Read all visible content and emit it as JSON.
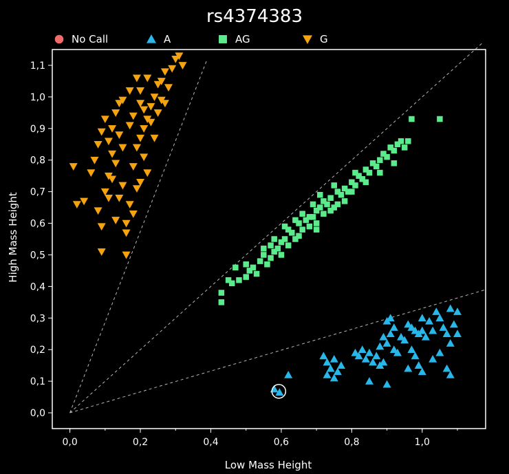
{
  "chart_data": {
    "type": "scatter",
    "title": "rs4374383",
    "xlabel": "Low Mass Height",
    "ylabel": "High Mass Height",
    "xlim": [
      -0.05,
      1.18
    ],
    "ylim": [
      -0.05,
      1.15
    ],
    "xticks": [
      "0,0",
      "0,2",
      "0,4",
      "0,6",
      "0,8",
      "1,0"
    ],
    "xtick_values": [
      0.0,
      0.2,
      0.4,
      0.6,
      0.8,
      1.0
    ],
    "yticks": [
      "0,0",
      "0,1",
      "0,2",
      "0,3",
      "0,4",
      "0,5",
      "0,6",
      "0,7",
      "0,8",
      "0,9",
      "1,0",
      "1,1"
    ],
    "ytick_values": [
      0.0,
      0.1,
      0.2,
      0.3,
      0.4,
      0.5,
      0.6,
      0.7,
      0.8,
      0.9,
      1.0,
      1.1
    ],
    "grid": false,
    "legend_position": "top",
    "boundary_lines": [
      {
        "from": [
          0.0,
          0.0
        ],
        "to": [
          0.39,
          1.12
        ]
      },
      {
        "from": [
          0.0,
          0.0
        ],
        "to": [
          1.17,
          1.17
        ]
      },
      {
        "from": [
          0.0,
          0.0
        ],
        "to": [
          1.18,
          0.39
        ]
      }
    ],
    "highlighted_point": [
      0.593,
      0.068
    ],
    "series": [
      {
        "name": "No Call",
        "marker": "circle",
        "color": "#f26b6b",
        "points": []
      },
      {
        "name": "A",
        "marker": "triangle-up",
        "color": "#29b6e8",
        "points": [
          [
            0.58,
            0.075
          ],
          [
            0.595,
            0.065
          ],
          [
            0.62,
            0.12
          ],
          [
            0.72,
            0.18
          ],
          [
            0.73,
            0.16
          ],
          [
            0.74,
            0.14
          ],
          [
            0.75,
            0.17
          ],
          [
            0.76,
            0.13
          ],
          [
            0.73,
            0.12
          ],
          [
            0.77,
            0.15
          ],
          [
            0.75,
            0.11
          ],
          [
            0.81,
            0.19
          ],
          [
            0.82,
            0.18
          ],
          [
            0.83,
            0.2
          ],
          [
            0.84,
            0.17
          ],
          [
            0.85,
            0.19
          ],
          [
            0.86,
            0.16
          ],
          [
            0.87,
            0.18
          ],
          [
            0.88,
            0.21
          ],
          [
            0.89,
            0.24
          ],
          [
            0.9,
            0.22
          ],
          [
            0.91,
            0.25
          ],
          [
            0.92,
            0.2
          ],
          [
            0.9,
            0.29
          ],
          [
            0.91,
            0.3
          ],
          [
            0.93,
            0.19
          ],
          [
            0.89,
            0.16
          ],
          [
            0.85,
            0.1
          ],
          [
            0.88,
            0.15
          ],
          [
            0.92,
            0.27
          ],
          [
            0.9,
            0.09
          ],
          [
            0.95,
            0.23
          ],
          [
            0.96,
            0.28
          ],
          [
            0.97,
            0.27
          ],
          [
            0.98,
            0.26
          ],
          [
            0.99,
            0.25
          ],
          [
            1.0,
            0.3
          ],
          [
            1.01,
            0.24
          ],
          [
            1.02,
            0.29
          ],
          [
            0.97,
            0.2
          ],
          [
            0.98,
            0.18
          ],
          [
            0.99,
            0.15
          ],
          [
            1.0,
            0.13
          ],
          [
            0.96,
            0.14
          ],
          [
            1.03,
            0.26
          ],
          [
            1.04,
            0.32
          ],
          [
            1.05,
            0.3
          ],
          [
            1.06,
            0.27
          ],
          [
            1.07,
            0.25
          ],
          [
            1.08,
            0.33
          ],
          [
            1.09,
            0.28
          ],
          [
            1.1,
            0.32
          ],
          [
            1.08,
            0.22
          ],
          [
            1.07,
            0.14
          ],
          [
            1.08,
            0.12
          ],
          [
            1.1,
            0.25
          ],
          [
            1.05,
            0.19
          ],
          [
            1.03,
            0.17
          ],
          [
            0.94,
            0.24
          ],
          [
            1.0,
            0.26
          ]
        ]
      },
      {
        "name": "AG",
        "marker": "square",
        "color": "#5ceb8c",
        "points": [
          [
            0.43,
            0.35
          ],
          [
            0.43,
            0.38
          ],
          [
            0.46,
            0.41
          ],
          [
            0.48,
            0.42
          ],
          [
            0.5,
            0.43
          ],
          [
            0.51,
            0.45
          ],
          [
            0.5,
            0.47
          ],
          [
            0.52,
            0.46
          ],
          [
            0.53,
            0.44
          ],
          [
            0.54,
            0.48
          ],
          [
            0.55,
            0.5
          ],
          [
            0.56,
            0.47
          ],
          [
            0.57,
            0.49
          ],
          [
            0.58,
            0.51
          ],
          [
            0.59,
            0.52
          ],
          [
            0.6,
            0.5
          ],
          [
            0.6,
            0.54
          ],
          [
            0.61,
            0.55
          ],
          [
            0.62,
            0.53
          ],
          [
            0.63,
            0.57
          ],
          [
            0.64,
            0.55
          ],
          [
            0.65,
            0.6
          ],
          [
            0.65,
            0.56
          ],
          [
            0.66,
            0.58
          ],
          [
            0.67,
            0.61
          ],
          [
            0.68,
            0.59
          ],
          [
            0.69,
            0.62
          ],
          [
            0.7,
            0.6
          ],
          [
            0.7,
            0.64
          ],
          [
            0.71,
            0.65
          ],
          [
            0.72,
            0.63
          ],
          [
            0.73,
            0.66
          ],
          [
            0.74,
            0.68
          ],
          [
            0.75,
            0.65
          ],
          [
            0.76,
            0.7
          ],
          [
            0.77,
            0.69
          ],
          [
            0.78,
            0.71
          ],
          [
            0.79,
            0.7
          ],
          [
            0.8,
            0.73
          ],
          [
            0.81,
            0.72
          ],
          [
            0.82,
            0.75
          ],
          [
            0.83,
            0.74
          ],
          [
            0.84,
            0.77
          ],
          [
            0.85,
            0.76
          ],
          [
            0.86,
            0.79
          ],
          [
            0.87,
            0.78
          ],
          [
            0.88,
            0.8
          ],
          [
            0.89,
            0.82
          ],
          [
            0.9,
            0.81
          ],
          [
            0.91,
            0.84
          ],
          [
            0.92,
            0.83
          ],
          [
            0.93,
            0.85
          ],
          [
            0.94,
            0.86
          ],
          [
            0.95,
            0.84
          ],
          [
            0.96,
            0.86
          ],
          [
            0.97,
            0.93
          ],
          [
            1.05,
            0.93
          ],
          [
            0.68,
            0.62
          ],
          [
            0.72,
            0.67
          ],
          [
            0.76,
            0.66
          ],
          [
            0.8,
            0.7
          ],
          [
            0.84,
            0.73
          ],
          [
            0.74,
            0.64
          ],
          [
            0.7,
            0.58
          ],
          [
            0.66,
            0.63
          ],
          [
            0.62,
            0.58
          ],
          [
            0.58,
            0.55
          ],
          [
            0.55,
            0.52
          ],
          [
            0.47,
            0.46
          ],
          [
            0.45,
            0.42
          ],
          [
            0.71,
            0.69
          ],
          [
            0.78,
            0.67
          ],
          [
            0.88,
            0.76
          ],
          [
            0.92,
            0.79
          ],
          [
            0.81,
            0.76
          ],
          [
            0.75,
            0.72
          ],
          [
            0.69,
            0.66
          ],
          [
            0.64,
            0.61
          ],
          [
            0.61,
            0.59
          ],
          [
            0.57,
            0.53
          ]
        ]
      },
      {
        "name": "G",
        "marker": "triangle-down",
        "color": "#f5a311",
        "points": [
          [
            0.01,
            0.78
          ],
          [
            0.02,
            0.66
          ],
          [
            0.04,
            0.67
          ],
          [
            0.06,
            0.76
          ],
          [
            0.07,
            0.8
          ],
          [
            0.08,
            0.64
          ],
          [
            0.09,
            0.59
          ],
          [
            0.09,
            0.51
          ],
          [
            0.1,
            0.7
          ],
          [
            0.11,
            0.75
          ],
          [
            0.12,
            0.82
          ],
          [
            0.12,
            0.9
          ],
          [
            0.13,
            0.95
          ],
          [
            0.14,
            0.88
          ],
          [
            0.15,
            0.72
          ],
          [
            0.16,
            0.6
          ],
          [
            0.16,
            0.5
          ],
          [
            0.17,
            0.66
          ],
          [
            0.18,
            0.78
          ],
          [
            0.18,
            0.94
          ],
          [
            0.19,
            0.84
          ],
          [
            0.2,
            0.98
          ],
          [
            0.2,
            1.02
          ],
          [
            0.21,
            0.9
          ],
          [
            0.22,
            0.76
          ],
          [
            0.22,
            1.06
          ],
          [
            0.23,
            0.97
          ],
          [
            0.24,
            0.87
          ],
          [
            0.25,
            1.04
          ],
          [
            0.26,
            0.99
          ],
          [
            0.27,
            1.08
          ],
          [
            0.28,
            1.03
          ],
          [
            0.29,
            1.09
          ],
          [
            0.3,
            1.12
          ],
          [
            0.31,
            1.13
          ],
          [
            0.32,
            1.1
          ],
          [
            0.11,
            0.86
          ],
          [
            0.13,
            0.79
          ],
          [
            0.14,
            0.98
          ],
          [
            0.15,
            0.84
          ],
          [
            0.17,
            0.91
          ],
          [
            0.19,
            0.71
          ],
          [
            0.21,
            0.81
          ],
          [
            0.23,
            0.92
          ],
          [
            0.1,
            0.93
          ],
          [
            0.12,
            0.74
          ],
          [
            0.14,
            0.68
          ],
          [
            0.16,
            0.57
          ],
          [
            0.18,
            0.63
          ],
          [
            0.2,
            0.87
          ],
          [
            0.24,
            1.0
          ],
          [
            0.26,
            1.05
          ],
          [
            0.13,
            0.61
          ],
          [
            0.15,
            0.99
          ],
          [
            0.17,
            1.02
          ],
          [
            0.19,
            1.06
          ],
          [
            0.21,
            0.96
          ],
          [
            0.08,
            0.85
          ],
          [
            0.09,
            0.89
          ],
          [
            0.11,
            0.68
          ],
          [
            0.22,
            0.93
          ],
          [
            0.25,
            0.95
          ],
          [
            0.27,
            0.98
          ],
          [
            0.2,
            0.73
          ]
        ]
      }
    ]
  }
}
